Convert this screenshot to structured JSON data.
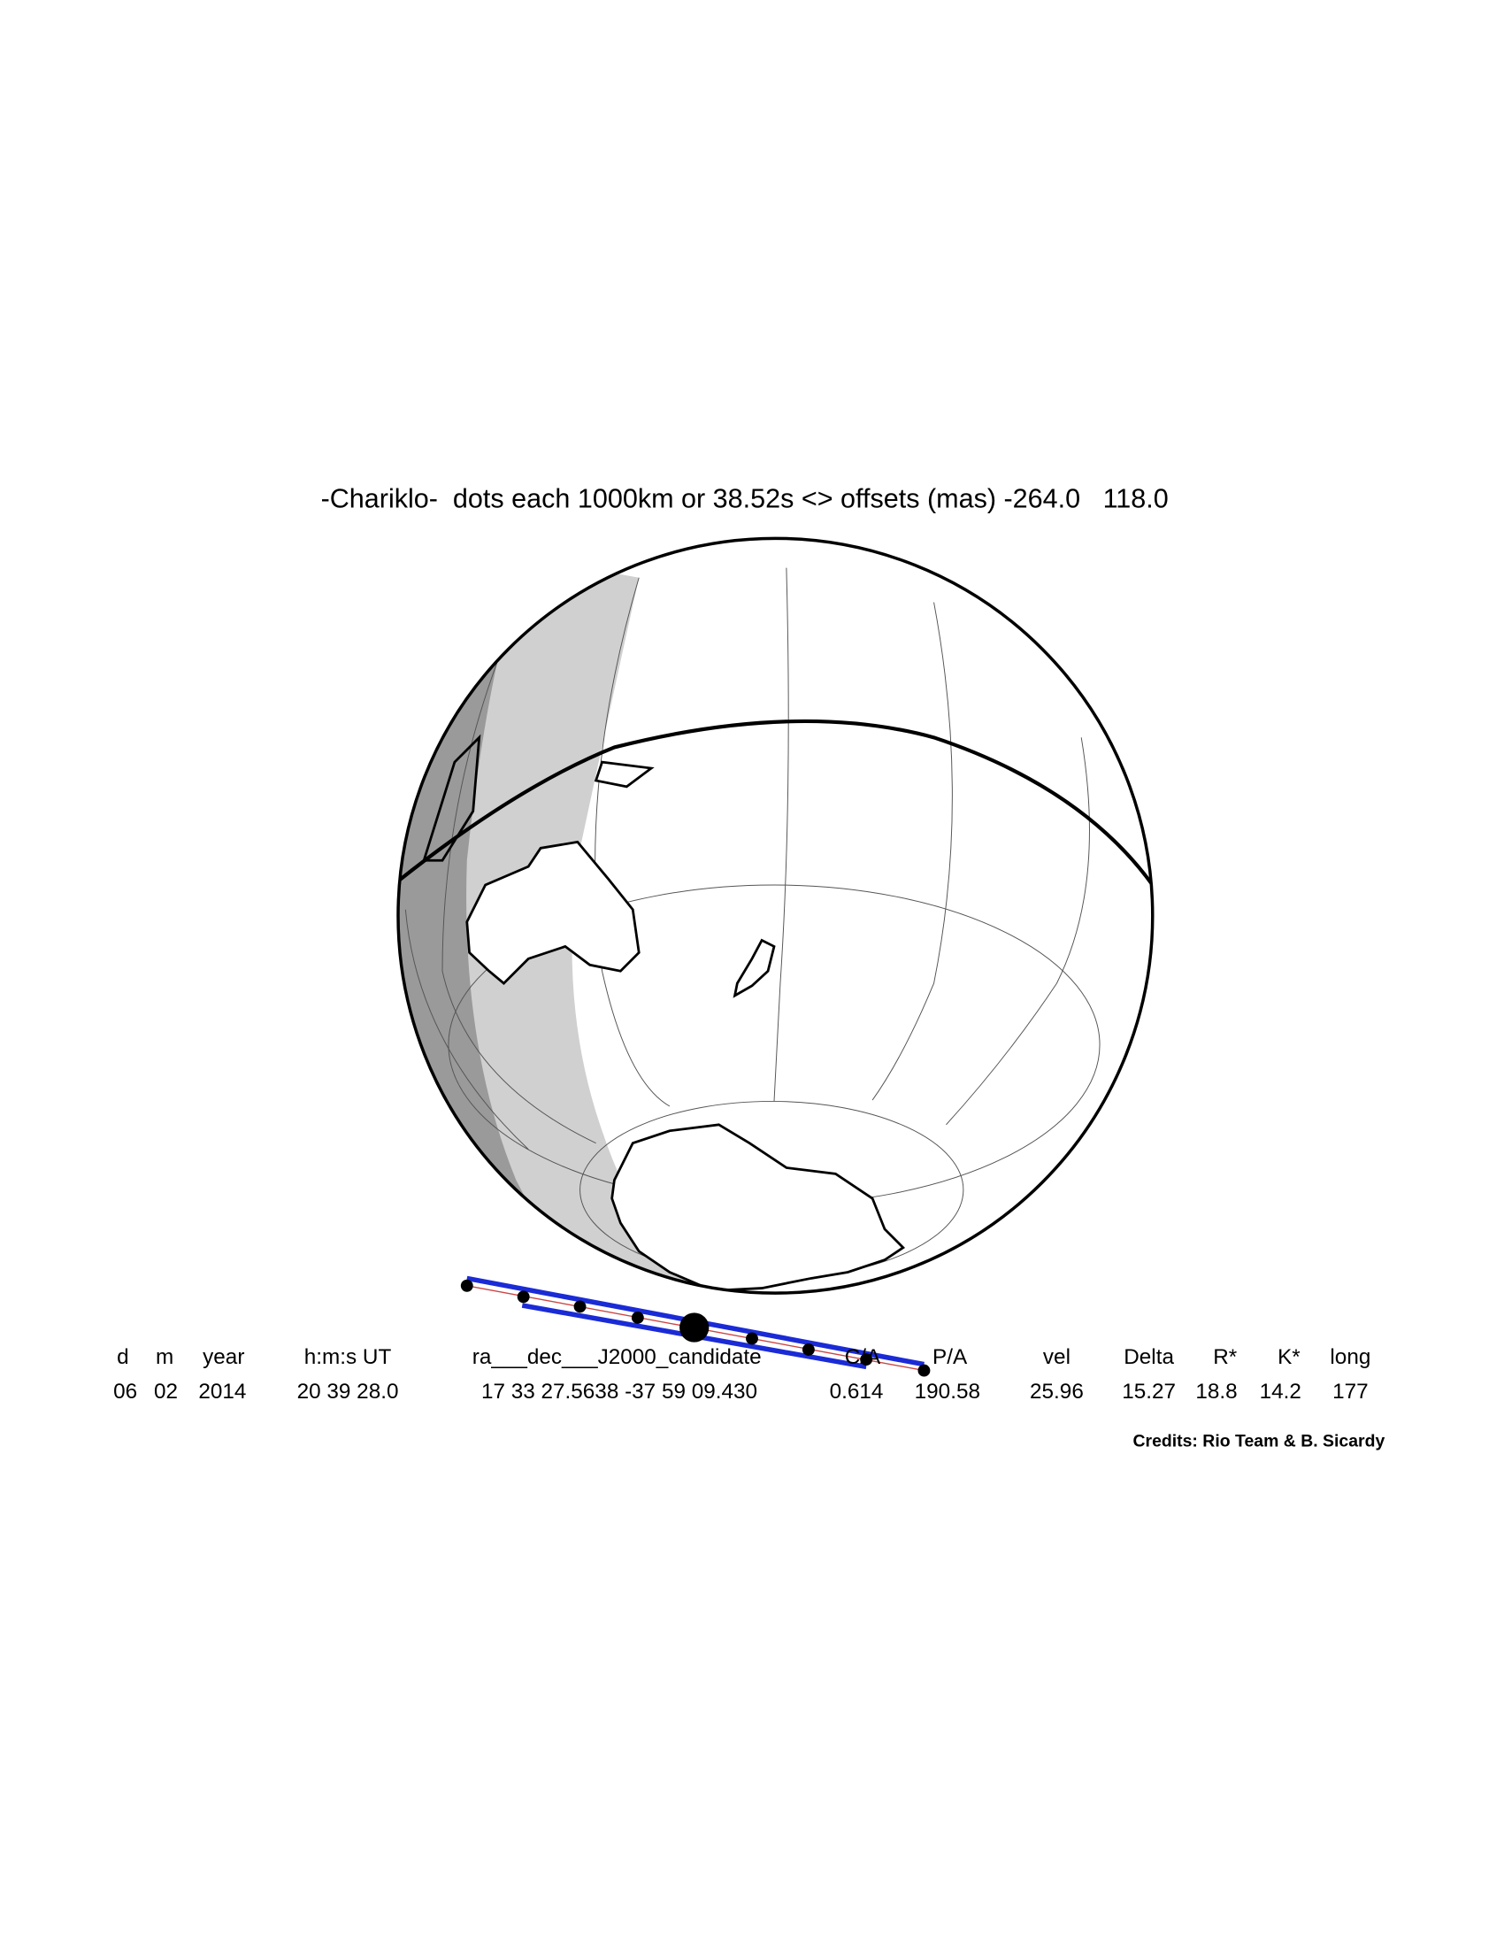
{
  "header": {
    "title": "-Chariklo-  dots each 1000km or 38.52s <> offsets (mas) -264.0   118.0"
  },
  "table": {
    "columns": [
      "d",
      "m",
      "year",
      "h:m:s UT",
      "ra___dec___J2000_candidate",
      "C/A",
      "P/A",
      "vel",
      "Delta",
      "R*",
      "K*",
      "long"
    ],
    "values": [
      "06",
      "02",
      "2014",
      "20 39 28.0",
      "17 33 27.5638 -37 59 09.430",
      "0.614",
      "190.58",
      "25.96",
      "15.27",
      "18.8",
      "14.2",
      "177"
    ]
  },
  "credits": "Credits: Rio Team & B. Sicardy"
}
